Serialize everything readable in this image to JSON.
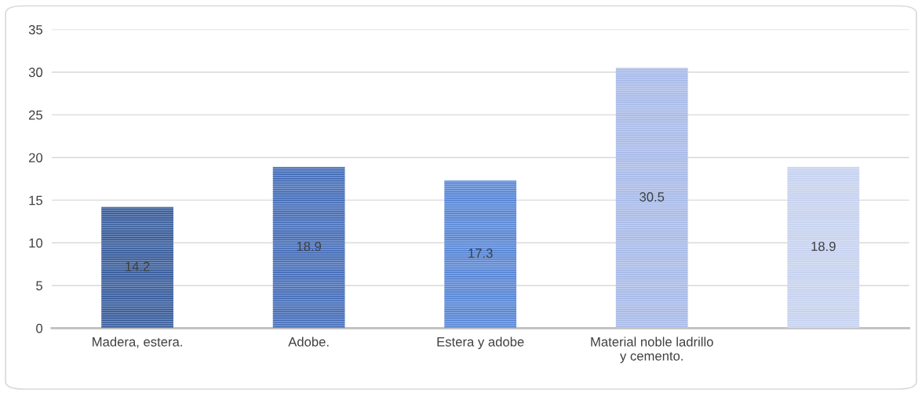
{
  "chart_data": {
    "type": "bar",
    "categories": [
      "Madera, estera.",
      "Adobe.",
      "Estera y adobe",
      "Material noble ladrillo\ny cemento.",
      null
    ],
    "values": [
      14.2,
      18.9,
      17.3,
      30.5,
      18.9
    ],
    "colors": [
      "#2e5496",
      "#3c66b4",
      "#4f7fd2",
      "#a3b6e6",
      "#c3cfee"
    ],
    "ylim": [
      0,
      35
    ],
    "yticks": [
      0,
      5,
      10,
      15,
      20,
      25,
      30,
      35
    ],
    "grid": "y",
    "data_labels": true
  }
}
